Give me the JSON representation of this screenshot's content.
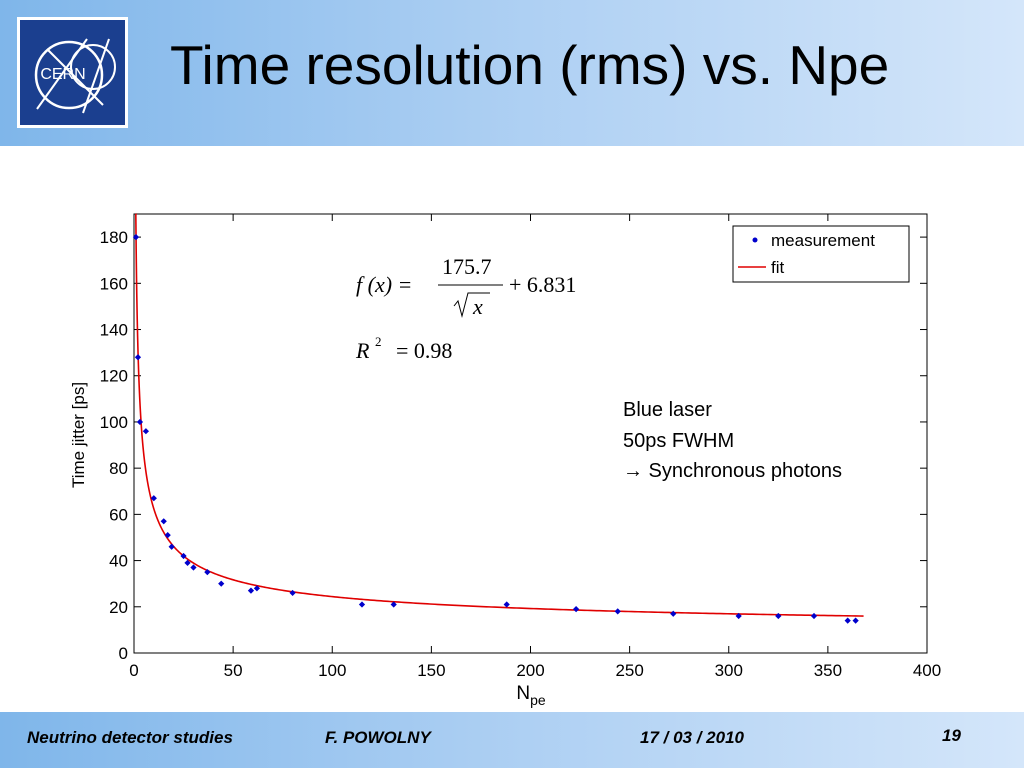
{
  "title": "Time resolution (rms) vs. Npe",
  "logo": {
    "text": "CERN",
    "colors": {
      "background": "#1b3f8f",
      "lines": "#ffffff"
    }
  },
  "footer": {
    "left": "Neutrino detector studies",
    "author": "F. POWOLNY",
    "date": "17 / 03 / 2010",
    "page": "19"
  },
  "annotation": {
    "line1": "Blue laser",
    "line2": "50ps FWHM",
    "line3": "→ Synchronous photons"
  },
  "equation": {
    "lhs": "f (x) =",
    "numerator": "175.7",
    "denominator": "x",
    "constant": "+ 6.831",
    "r2_label": "R",
    "r2_exp": "2",
    "r2_value": "= 0.98"
  },
  "colors": {
    "measurement": "#0000cc",
    "fit": "#e00000",
    "header": "#a9cdf2"
  },
  "chart_data": {
    "type": "scatter",
    "xlabel": "N",
    "xlabel_sub": "pe",
    "ylabel": "Time jitter [ps]",
    "xlim": [
      0,
      400
    ],
    "ylim": [
      0,
      190
    ],
    "xticks": [
      0,
      50,
      100,
      150,
      200,
      250,
      300,
      350,
      400
    ],
    "yticks": [
      0,
      20,
      40,
      60,
      80,
      100,
      120,
      140,
      160,
      180
    ],
    "legend_position": "top-right",
    "grid": false,
    "series": [
      {
        "name": "measurement",
        "kind": "points",
        "color": "#0000cc",
        "x": [
          1,
          2,
          3,
          6,
          10,
          15,
          17,
          19,
          25,
          27,
          30,
          37,
          44,
          59,
          62,
          80,
          115,
          131,
          188,
          223,
          244,
          272,
          305,
          325,
          343,
          360,
          364
        ],
        "y": [
          180,
          128,
          100,
          96,
          67,
          57,
          51,
          46,
          42,
          39,
          37,
          35,
          30,
          27,
          28,
          26,
          21,
          21,
          21,
          19,
          18,
          17,
          16,
          16,
          16,
          14,
          14
        ]
      },
      {
        "name": "fit",
        "kind": "line",
        "color": "#e00000",
        "function": {
          "a": 175.7,
          "b": 6.831,
          "x_range": [
            0.9,
            368
          ]
        }
      }
    ]
  }
}
